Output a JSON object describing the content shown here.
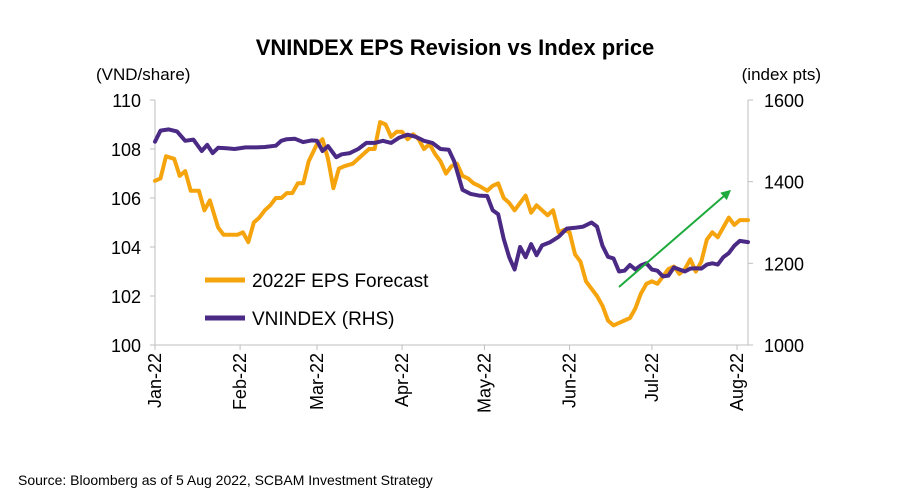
{
  "chart_data": {
    "type": "line",
    "title": "VNINDEX EPS Revision vs Index price",
    "left_unit": "(VND/share)",
    "right_unit": "(index pts)",
    "left_axis": {
      "min": 100,
      "max": 110,
      "ticks": [
        "100",
        "102",
        "104",
        "106",
        "108",
        "110"
      ]
    },
    "right_axis": {
      "min": 1000,
      "max": 1600,
      "ticks": [
        "1000",
        "1200",
        "1400",
        "1600"
      ]
    },
    "x_axis": {
      "start": "2022-01-01",
      "end": "2022-08-05",
      "ticks": [
        {
          "label": "Jan-22",
          "date": "2022-01-01"
        },
        {
          "label": "Feb-22",
          "date": "2022-02-01"
        },
        {
          "label": "Mar-22",
          "date": "2022-03-01"
        },
        {
          "label": "Apr-22",
          "date": "2022-04-01"
        },
        {
          "label": "May-22",
          "date": "2022-05-01"
        },
        {
          "label": "Jun-22",
          "date": "2022-06-01"
        },
        {
          "label": "Jul-22",
          "date": "2022-07-01"
        },
        {
          "label": "Aug-22",
          "date": "2022-08-01"
        }
      ]
    },
    "legend_position": "lower-left",
    "grid": false,
    "series": [
      {
        "name": "2022F EPS Forecast",
        "axis": "left",
        "color": "#F5A40D",
        "points": [
          [
            "2022-01-01",
            106.7
          ],
          [
            "2022-01-03",
            106.8
          ],
          [
            "2022-01-05",
            107.7
          ],
          [
            "2022-01-08",
            107.6
          ],
          [
            "2022-01-10",
            106.9
          ],
          [
            "2022-01-12",
            107.1
          ],
          [
            "2022-01-14",
            106.3
          ],
          [
            "2022-01-17",
            106.3
          ],
          [
            "2022-01-19",
            105.5
          ],
          [
            "2022-01-21",
            105.9
          ],
          [
            "2022-01-24",
            104.8
          ],
          [
            "2022-01-26",
            104.5
          ],
          [
            "2022-01-28",
            104.5
          ],
          [
            "2022-01-31",
            104.5
          ],
          [
            "2022-02-02",
            104.6
          ],
          [
            "2022-02-04",
            104.2
          ],
          [
            "2022-02-06",
            105.0
          ],
          [
            "2022-02-08",
            105.2
          ],
          [
            "2022-02-10",
            105.5
          ],
          [
            "2022-02-12",
            105.7
          ],
          [
            "2022-02-14",
            106.0
          ],
          [
            "2022-02-16",
            106.0
          ],
          [
            "2022-02-18",
            106.2
          ],
          [
            "2022-02-20",
            106.2
          ],
          [
            "2022-02-22",
            106.6
          ],
          [
            "2022-02-24",
            106.6
          ],
          [
            "2022-02-26",
            107.5
          ],
          [
            "2022-03-01",
            108.2
          ],
          [
            "2022-03-03",
            108.4
          ],
          [
            "2022-03-05",
            107.6
          ],
          [
            "2022-03-07",
            106.4
          ],
          [
            "2022-03-09",
            107.2
          ],
          [
            "2022-03-11",
            107.3
          ],
          [
            "2022-03-14",
            107.4
          ],
          [
            "2022-03-16",
            107.6
          ],
          [
            "2022-03-18",
            107.8
          ],
          [
            "2022-03-20",
            108.0
          ],
          [
            "2022-03-22",
            108.0
          ],
          [
            "2022-03-24",
            109.1
          ],
          [
            "2022-03-26",
            109.0
          ],
          [
            "2022-03-28",
            108.5
          ],
          [
            "2022-03-30",
            108.7
          ],
          [
            "2022-04-01",
            108.7
          ],
          [
            "2022-04-03",
            108.4
          ],
          [
            "2022-04-05",
            108.6
          ],
          [
            "2022-04-07",
            108.4
          ],
          [
            "2022-04-09",
            108.0
          ],
          [
            "2022-04-11",
            108.2
          ],
          [
            "2022-04-13",
            107.8
          ],
          [
            "2022-04-15",
            107.5
          ],
          [
            "2022-04-17",
            107.0
          ],
          [
            "2022-04-19",
            107.3
          ],
          [
            "2022-04-21",
            107.4
          ],
          [
            "2022-04-23",
            106.9
          ],
          [
            "2022-04-25",
            106.8
          ],
          [
            "2022-04-27",
            106.6
          ],
          [
            "2022-04-29",
            106.5
          ],
          [
            "2022-05-02",
            106.3
          ],
          [
            "2022-05-04",
            106.5
          ],
          [
            "2022-05-06",
            106.6
          ],
          [
            "2022-05-08",
            106.0
          ],
          [
            "2022-05-10",
            105.8
          ],
          [
            "2022-05-12",
            105.5
          ],
          [
            "2022-05-14",
            105.8
          ],
          [
            "2022-05-16",
            106.1
          ],
          [
            "2022-05-18",
            105.4
          ],
          [
            "2022-05-20",
            105.7
          ],
          [
            "2022-05-22",
            105.5
          ],
          [
            "2022-05-24",
            105.3
          ],
          [
            "2022-05-26",
            105.5
          ],
          [
            "2022-05-28",
            104.6
          ],
          [
            "2022-05-30",
            104.7
          ],
          [
            "2022-06-01",
            104.6
          ],
          [
            "2022-06-03",
            103.7
          ],
          [
            "2022-06-05",
            103.4
          ],
          [
            "2022-06-07",
            102.6
          ],
          [
            "2022-06-09",
            102.3
          ],
          [
            "2022-06-11",
            102.0
          ],
          [
            "2022-06-13",
            101.6
          ],
          [
            "2022-06-15",
            101.0
          ],
          [
            "2022-06-17",
            100.8
          ],
          [
            "2022-06-19",
            100.9
          ],
          [
            "2022-06-21",
            101.0
          ],
          [
            "2022-06-23",
            101.1
          ],
          [
            "2022-06-25",
            101.5
          ],
          [
            "2022-06-27",
            102.1
          ],
          [
            "2022-06-29",
            102.5
          ],
          [
            "2022-07-01",
            102.6
          ],
          [
            "2022-07-03",
            102.5
          ],
          [
            "2022-07-05",
            102.8
          ],
          [
            "2022-07-07",
            103.1
          ],
          [
            "2022-07-09",
            103.2
          ],
          [
            "2022-07-11",
            102.9
          ],
          [
            "2022-07-13",
            103.1
          ],
          [
            "2022-07-15",
            103.5
          ],
          [
            "2022-07-17",
            103.0
          ],
          [
            "2022-07-19",
            103.4
          ],
          [
            "2022-07-21",
            104.3
          ],
          [
            "2022-07-23",
            104.6
          ],
          [
            "2022-07-25",
            104.4
          ],
          [
            "2022-07-27",
            104.8
          ],
          [
            "2022-07-29",
            105.2
          ],
          [
            "2022-07-31",
            104.9
          ],
          [
            "2022-08-02",
            105.1
          ],
          [
            "2022-08-05",
            105.1
          ]
        ]
      },
      {
        "name": "VNINDEX (RHS)",
        "axis": "right",
        "color": "#4B2A85",
        "points": [
          [
            "2022-01-01",
            1498
          ],
          [
            "2022-01-03",
            1525
          ],
          [
            "2022-01-06",
            1528
          ],
          [
            "2022-01-09",
            1523
          ],
          [
            "2022-01-12",
            1500
          ],
          [
            "2022-01-15",
            1503
          ],
          [
            "2022-01-18",
            1475
          ],
          [
            "2022-01-20",
            1490
          ],
          [
            "2022-01-22",
            1470
          ],
          [
            "2022-01-24",
            1483
          ],
          [
            "2022-01-27",
            1482
          ],
          [
            "2022-01-30",
            1480
          ],
          [
            "2022-02-03",
            1484
          ],
          [
            "2022-02-07",
            1484
          ],
          [
            "2022-02-10",
            1485
          ],
          [
            "2022-02-14",
            1488
          ],
          [
            "2022-02-16",
            1500
          ],
          [
            "2022-02-18",
            1504
          ],
          [
            "2022-02-21",
            1505
          ],
          [
            "2022-02-24",
            1497
          ],
          [
            "2022-02-27",
            1501
          ],
          [
            "2022-03-01",
            1500
          ],
          [
            "2022-03-03",
            1475
          ],
          [
            "2022-03-05",
            1487
          ],
          [
            "2022-03-08",
            1460
          ],
          [
            "2022-03-10",
            1467
          ],
          [
            "2022-03-13",
            1470
          ],
          [
            "2022-03-16",
            1480
          ],
          [
            "2022-03-19",
            1495
          ],
          [
            "2022-03-22",
            1495
          ],
          [
            "2022-03-25",
            1500
          ],
          [
            "2022-03-28",
            1495
          ],
          [
            "2022-03-31",
            1508
          ],
          [
            "2022-04-03",
            1515
          ],
          [
            "2022-04-06",
            1510
          ],
          [
            "2022-04-09",
            1500
          ],
          [
            "2022-04-12",
            1495
          ],
          [
            "2022-04-15",
            1480
          ],
          [
            "2022-04-18",
            1478
          ],
          [
            "2022-04-20",
            1450
          ],
          [
            "2022-04-23",
            1380
          ],
          [
            "2022-04-26",
            1370
          ],
          [
            "2022-04-29",
            1366
          ],
          [
            "2022-05-02",
            1365
          ],
          [
            "2022-05-04",
            1330
          ],
          [
            "2022-05-06",
            1320
          ],
          [
            "2022-05-08",
            1260
          ],
          [
            "2022-05-10",
            1215
          ],
          [
            "2022-05-12",
            1185
          ],
          [
            "2022-05-14",
            1240
          ],
          [
            "2022-05-16",
            1215
          ],
          [
            "2022-05-18",
            1247
          ],
          [
            "2022-05-20",
            1220
          ],
          [
            "2022-05-22",
            1244
          ],
          [
            "2022-05-25",
            1252
          ],
          [
            "2022-05-28",
            1265
          ],
          [
            "2022-05-31",
            1285
          ],
          [
            "2022-06-03",
            1287
          ],
          [
            "2022-06-06",
            1290
          ],
          [
            "2022-06-09",
            1300
          ],
          [
            "2022-06-11",
            1290
          ],
          [
            "2022-06-13",
            1243
          ],
          [
            "2022-06-15",
            1216
          ],
          [
            "2022-06-17",
            1212
          ],
          [
            "2022-06-19",
            1180
          ],
          [
            "2022-06-21",
            1182
          ],
          [
            "2022-06-23",
            1196
          ],
          [
            "2022-06-25",
            1185
          ],
          [
            "2022-06-27",
            1195
          ],
          [
            "2022-06-29",
            1200
          ],
          [
            "2022-07-01",
            1185
          ],
          [
            "2022-07-03",
            1182
          ],
          [
            "2022-07-05",
            1168
          ],
          [
            "2022-07-07",
            1170
          ],
          [
            "2022-07-09",
            1190
          ],
          [
            "2022-07-11",
            1185
          ],
          [
            "2022-07-13",
            1180
          ],
          [
            "2022-07-15",
            1187
          ],
          [
            "2022-07-17",
            1188
          ],
          [
            "2022-07-19",
            1187
          ],
          [
            "2022-07-21",
            1197
          ],
          [
            "2022-07-23",
            1200
          ],
          [
            "2022-07-25",
            1197
          ],
          [
            "2022-07-27",
            1215
          ],
          [
            "2022-07-29",
            1225
          ],
          [
            "2022-07-31",
            1243
          ],
          [
            "2022-08-02",
            1255
          ],
          [
            "2022-08-05",
            1252
          ]
        ]
      }
    ],
    "annotation": {
      "type": "arrow",
      "color": "#1EAA3C",
      "from": {
        "date": "2022-06-19",
        "right_axis_value": 1142
      },
      "to": {
        "date": "2022-07-29",
        "right_axis_value": 1375
      }
    },
    "source": "Source: Bloomberg as of 5 Aug 2022, SCBAM Investment Strategy"
  }
}
